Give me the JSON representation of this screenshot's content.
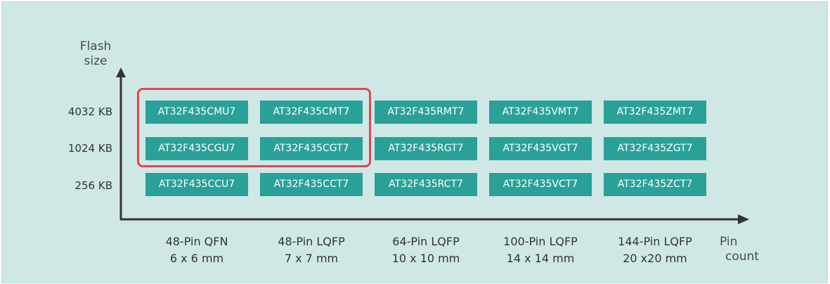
{
  "axes": {
    "y_title": [
      "Flash",
      "size"
    ],
    "x_title": [
      "Pin",
      "count"
    ]
  },
  "rows": [
    "4032 KB",
    "1024 KB",
    "256 KB"
  ],
  "columns": [
    {
      "package": "48-Pin QFN",
      "size": "6 x 6 mm"
    },
    {
      "package": "48-Pin LQFP",
      "size": "7 x 7 mm"
    },
    {
      "package": "64-Pin LQFP",
      "size": "10 x 10 mm"
    },
    {
      "package": "100-Pin LQFP",
      "size": "14 x 14 mm"
    },
    {
      "package": "144-Pin LQFP",
      "size": "20 x20 mm"
    }
  ],
  "grid": [
    [
      "AT32F435CMU7",
      "AT32F435CMT7",
      "AT32F435RMT7",
      "AT32F435VMT7",
      "AT32F435ZMT7"
    ],
    [
      "AT32F435CGU7",
      "AT32F435CGT7",
      "AT32F435RGT7",
      "AT32F435VGT7",
      "AT32F435ZGT7"
    ],
    [
      "AT32F435CCU7",
      "AT32F435CCT7",
      "AT32F435RCT7",
      "AT32F435VCT7",
      "AT32F435ZCT7"
    ]
  ],
  "colors": {
    "background": "#cfe8e6",
    "chip": "#2aa198",
    "chip_text": "#ffffff",
    "highlight": "#e0474c",
    "axis": "#333333"
  }
}
